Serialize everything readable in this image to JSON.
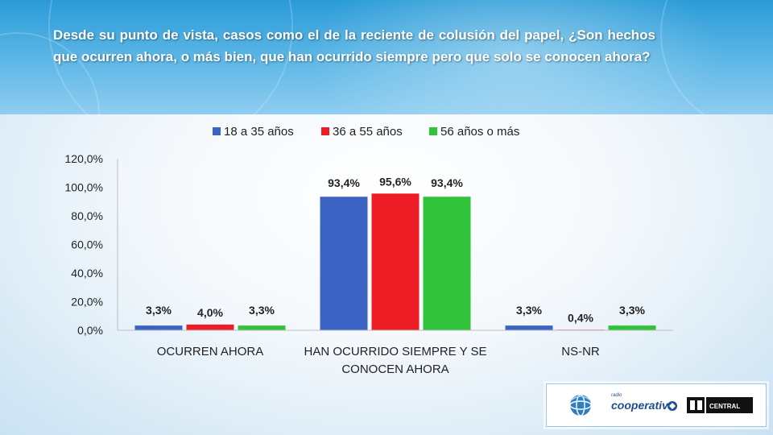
{
  "slide": {
    "question": "Desde su punto de vista, casos como el de la reciente de colusión del papel, ¿Son hechos que ocurren ahora,  o más bien, que han ocurrido siempre pero que solo se conocen ahora?"
  },
  "logos": {
    "cooperativa_text": "cooperativa",
    "cooperativa_small": "radio",
    "central_text": "CENTRAL"
  },
  "chart_data": {
    "type": "bar",
    "categories": [
      [
        "OCURREN AHORA"
      ],
      [
        "HAN OCURRIDO SIEMPRE Y SE",
        "CONOCEN AHORA"
      ],
      [
        "NS-NR"
      ]
    ],
    "series": [
      {
        "name": "18 a 35 años",
        "color": "#3a63c4",
        "values": [
          3.3,
          93.4,
          3.3
        ],
        "labels": [
          "3,3%",
          "93,4%",
          "3,3%"
        ]
      },
      {
        "name": "36 a 55 años",
        "color": "#ee1c24",
        "values": [
          4.0,
          95.6,
          0.4
        ],
        "labels": [
          "4,0%",
          "95,6%",
          "0,4%"
        ]
      },
      {
        "name": "56 años o más",
        "color": "#2fc23a",
        "values": [
          3.3,
          93.4,
          3.3
        ],
        "labels": [
          "3,3%",
          "93,4%",
          "3,3%"
        ]
      }
    ],
    "yticks": [
      "0,0%",
      "20,0%",
      "40,0%",
      "60,0%",
      "80,0%",
      "100,0%",
      "120,0%"
    ],
    "ylim": [
      0,
      120
    ],
    "grid": false,
    "legend": "top"
  }
}
